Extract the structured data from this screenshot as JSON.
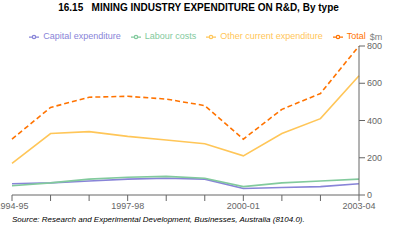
{
  "chart_data": {
    "type": "line",
    "title": "16.15   MINING INDUSTRY EXPENDITURE ON R&D, By type",
    "ylabel": "$m",
    "annotations": [
      "Source: Research and Experimental Development, Businesses, Australia (8104.0)."
    ],
    "categories": [
      "1994-95",
      null,
      null,
      "1997-98",
      null,
      null,
      "2000-01",
      null,
      null,
      "2003-04"
    ],
    "series": [
      {
        "name": "Capital expenditure",
        "color": "#8884d8",
        "line_style": "solid",
        "values": [
          60,
          65,
          75,
          85,
          90,
          85,
          35,
          40,
          45,
          60
        ]
      },
      {
        "name": "Labour costs",
        "color": "#82ca9d",
        "line_style": "solid",
        "values": [
          50,
          65,
          85,
          95,
          100,
          90,
          45,
          65,
          75,
          85
        ]
      },
      {
        "name": "Other current expenditure",
        "color": "#ffc658",
        "line_style": "solid",
        "values": [
          170,
          330,
          340,
          315,
          295,
          275,
          210,
          330,
          410,
          640
        ]
      },
      {
        "name": "Total",
        "color": "#ff7300",
        "line_style": "dashed",
        "values": [
          300,
          470,
          525,
          530,
          515,
          480,
          300,
          460,
          545,
          800
        ]
      }
    ],
    "ylim": [
      0,
      800
    ],
    "yticks": [
      0,
      200,
      400,
      600,
      800
    ],
    "grid": false,
    "legend": "top"
  }
}
